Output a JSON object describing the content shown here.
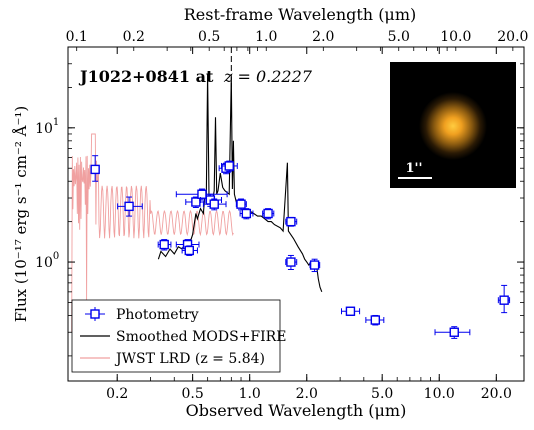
{
  "chart_data": {
    "type": "scatter",
    "title": "",
    "object_name": "J1022+0841 at",
    "redshift_label": "z = 0.2227",
    "inset_scale_label": "1''",
    "xlabel": "Observed Wavelength (μm)",
    "xlabel_top": "Rest-frame Wavelength  (μm)",
    "ylabel": "Flux (10⁻¹⁷ erg s⁻¹ cm⁻² Å⁻¹)",
    "x_scale": "log",
    "y_scale": "log",
    "xlim": [
      0.11,
      28
    ],
    "ylim": [
      0.13,
      40
    ],
    "redshift": 0.2227,
    "lrd_redshift": 5.84,
    "x_ticks": [
      {
        "value": 0.2,
        "label": "0.2"
      },
      {
        "value": 0.5,
        "label": "0.5"
      },
      {
        "value": 1.0,
        "label": "1.0"
      },
      {
        "value": 2.0,
        "label": "2.0"
      },
      {
        "value": 5.0,
        "label": "5.0"
      },
      {
        "value": 10.0,
        "label": "10.0"
      },
      {
        "value": 20.0,
        "label": "20.0"
      }
    ],
    "x_ticks_top_rest": [
      {
        "value": 0.1,
        "label": "0.1"
      },
      {
        "value": 0.2,
        "label": "0.2"
      },
      {
        "value": 0.5,
        "label": "0.5"
      },
      {
        "value": 1.0,
        "label": "1.0"
      },
      {
        "value": 2.0,
        "label": "2.0"
      },
      {
        "value": 5.0,
        "label": "5.0"
      },
      {
        "value": 10.0,
        "label": "10.0"
      },
      {
        "value": 20.0,
        "label": "20.0"
      }
    ],
    "y_ticks": [
      {
        "value": 1,
        "label": "10",
        "exp": "0"
      },
      {
        "value": 10,
        "label": "10",
        "exp": "1"
      }
    ],
    "legend_position": "lower-left",
    "legend": [
      {
        "name": "Photometry",
        "style": "errorbar-square",
        "color": "#0000ee"
      },
      {
        "name": "Smoothed MODS+FIRE",
        "style": "line",
        "color": "#000000"
      },
      {
        "name": "JWST LRD (z = 5.84)",
        "style": "line",
        "color": "#f0a0a0"
      }
    ],
    "photometry": [
      {
        "x": 0.153,
        "y": 4.9,
        "xerr": [
          0.007,
          0.007
        ],
        "yerr": [
          0.9,
          1.3
        ]
      },
      {
        "x": 0.231,
        "y": 2.6,
        "xerr": [
          0.03,
          0.04
        ],
        "yerr": [
          0.4,
          0.45
        ]
      },
      {
        "x": 0.354,
        "y": 1.35,
        "xerr": [
          0.025,
          0.03
        ],
        "yerr": [
          0.12,
          0.12
        ]
      },
      {
        "x": 0.47,
        "y": 1.35,
        "xerr": [
          0.06,
          0.07
        ],
        "yerr": [
          0.12,
          0.12
        ]
      },
      {
        "x": 0.48,
        "y": 1.22,
        "xerr": [
          0.04,
          0.05
        ],
        "yerr": [
          0.1,
          0.1
        ]
      },
      {
        "x": 0.52,
        "y": 2.8,
        "xerr": [
          0.06,
          0.08
        ],
        "yerr": [
          0.25,
          0.25
        ]
      },
      {
        "x": 0.56,
        "y": 3.2,
        "xerr": [
          0.15,
          0.2
        ],
        "yerr": [
          0.3,
          0.3
        ]
      },
      {
        "x": 0.62,
        "y": 2.9,
        "xerr": [
          0.07,
          0.09
        ],
        "yerr": [
          0.3,
          0.3
        ]
      },
      {
        "x": 0.65,
        "y": 2.7,
        "xerr": [
          0.08,
          0.1
        ],
        "yerr": [
          0.25,
          0.25
        ]
      },
      {
        "x": 0.75,
        "y": 5.0,
        "xerr": [
          0.06,
          0.07
        ],
        "yerr": [
          0.45,
          0.45
        ]
      },
      {
        "x": 0.78,
        "y": 5.2,
        "xerr": [
          0.07,
          0.08
        ],
        "yerr": [
          0.45,
          0.45
        ]
      },
      {
        "x": 0.9,
        "y": 2.7,
        "xerr": [
          0.05,
          0.06
        ],
        "yerr": [
          0.25,
          0.25
        ]
      },
      {
        "x": 0.96,
        "y": 2.3,
        "xerr": [
          0.07,
          0.08
        ],
        "yerr": [
          0.2,
          0.2
        ]
      },
      {
        "x": 1.25,
        "y": 2.3,
        "xerr": [
          0.08,
          0.09
        ],
        "yerr": [
          0.2,
          0.2
        ]
      },
      {
        "x": 1.65,
        "y": 2.0,
        "xerr": [
          0.1,
          0.12
        ],
        "yerr": [
          0.15,
          0.15
        ]
      },
      {
        "x": 1.65,
        "y": 1.0,
        "xerr": [
          0.1,
          0.12
        ],
        "yerr": [
          0.12,
          0.12
        ]
      },
      {
        "x": 2.2,
        "y": 0.95,
        "xerr": [
          0.12,
          0.14
        ],
        "yerr": [
          0.1,
          0.1
        ]
      },
      {
        "x": 3.4,
        "y": 0.43,
        "xerr": [
          0.35,
          0.4
        ],
        "yerr": [
          0.03,
          0.03
        ]
      },
      {
        "x": 4.6,
        "y": 0.37,
        "xerr": [
          0.5,
          0.5
        ],
        "yerr": [
          0.03,
          0.03
        ]
      },
      {
        "x": 12.0,
        "y": 0.3,
        "xerr": [
          2.5,
          2.5
        ],
        "yerr": [
          0.03,
          0.03
        ]
      },
      {
        "x": 22.0,
        "y": 0.52,
        "xerr": [
          1.5,
          1.5
        ],
        "yerr": [
          0.1,
          0.15
        ]
      }
    ],
    "spectrum_mods_fire": [
      [
        0.33,
        1.05
      ],
      [
        0.34,
        1.2
      ],
      [
        0.36,
        1.1
      ],
      [
        0.38,
        1.25
      ],
      [
        0.4,
        1.15
      ],
      [
        0.42,
        1.3
      ],
      [
        0.44,
        1.25
      ],
      [
        0.46,
        1.4
      ],
      [
        0.48,
        1.35
      ],
      [
        0.5,
        1.6
      ],
      [
        0.52,
        2.3
      ],
      [
        0.53,
        2.1
      ],
      [
        0.55,
        2.5
      ],
      [
        0.57,
        2.3
      ],
      [
        0.58,
        3.2
      ],
      [
        0.59,
        3.0
      ],
      [
        0.6,
        25
      ],
      [
        0.61,
        3.1
      ],
      [
        0.62,
        2.8
      ],
      [
        0.64,
        3.0
      ],
      [
        0.65,
        3.4
      ],
      [
        0.66,
        12
      ],
      [
        0.67,
        3.2
      ],
      [
        0.68,
        3.4
      ],
      [
        0.7,
        4.6
      ],
      [
        0.72,
        3.6
      ],
      [
        0.74,
        3.4
      ],
      [
        0.76,
        3.3
      ],
      [
        0.78,
        3.2
      ],
      [
        0.8,
        24
      ],
      [
        0.81,
        3.5
      ],
      [
        0.82,
        8
      ],
      [
        0.83,
        3.2
      ],
      [
        0.85,
        2.8
      ],
      [
        0.88,
        2.6
      ],
      [
        0.9,
        2.5
      ],
      [
        0.92,
        2.6
      ],
      [
        0.95,
        2.4
      ],
      [
        0.98,
        2.3
      ],
      [
        1.0,
        2.4
      ],
      [
        1.05,
        2.3
      ],
      [
        1.1,
        2.2
      ],
      [
        1.15,
        2.2
      ],
      [
        1.2,
        2.1
      ],
      [
        1.25,
        2.0
      ],
      [
        1.3,
        2.0
      ],
      [
        1.35,
        1.9
      ],
      [
        1.45,
        1.8
      ],
      [
        1.5,
        1.7
      ],
      [
        1.58,
        5.5
      ],
      [
        1.6,
        1.7
      ],
      [
        1.7,
        1.5
      ],
      [
        1.8,
        1.3
      ],
      [
        1.9,
        1.15
      ],
      [
        1.95,
        1.05
      ],
      [
        2.0,
        1.0
      ],
      [
        2.05,
        0.95
      ],
      [
        2.1,
        1.0
      ],
      [
        2.15,
        0.95
      ],
      [
        2.2,
        0.9
      ],
      [
        2.25,
        0.95
      ],
      [
        2.3,
        0.75
      ],
      [
        2.35,
        0.65
      ],
      [
        2.4,
        0.6
      ]
    ]
  }
}
